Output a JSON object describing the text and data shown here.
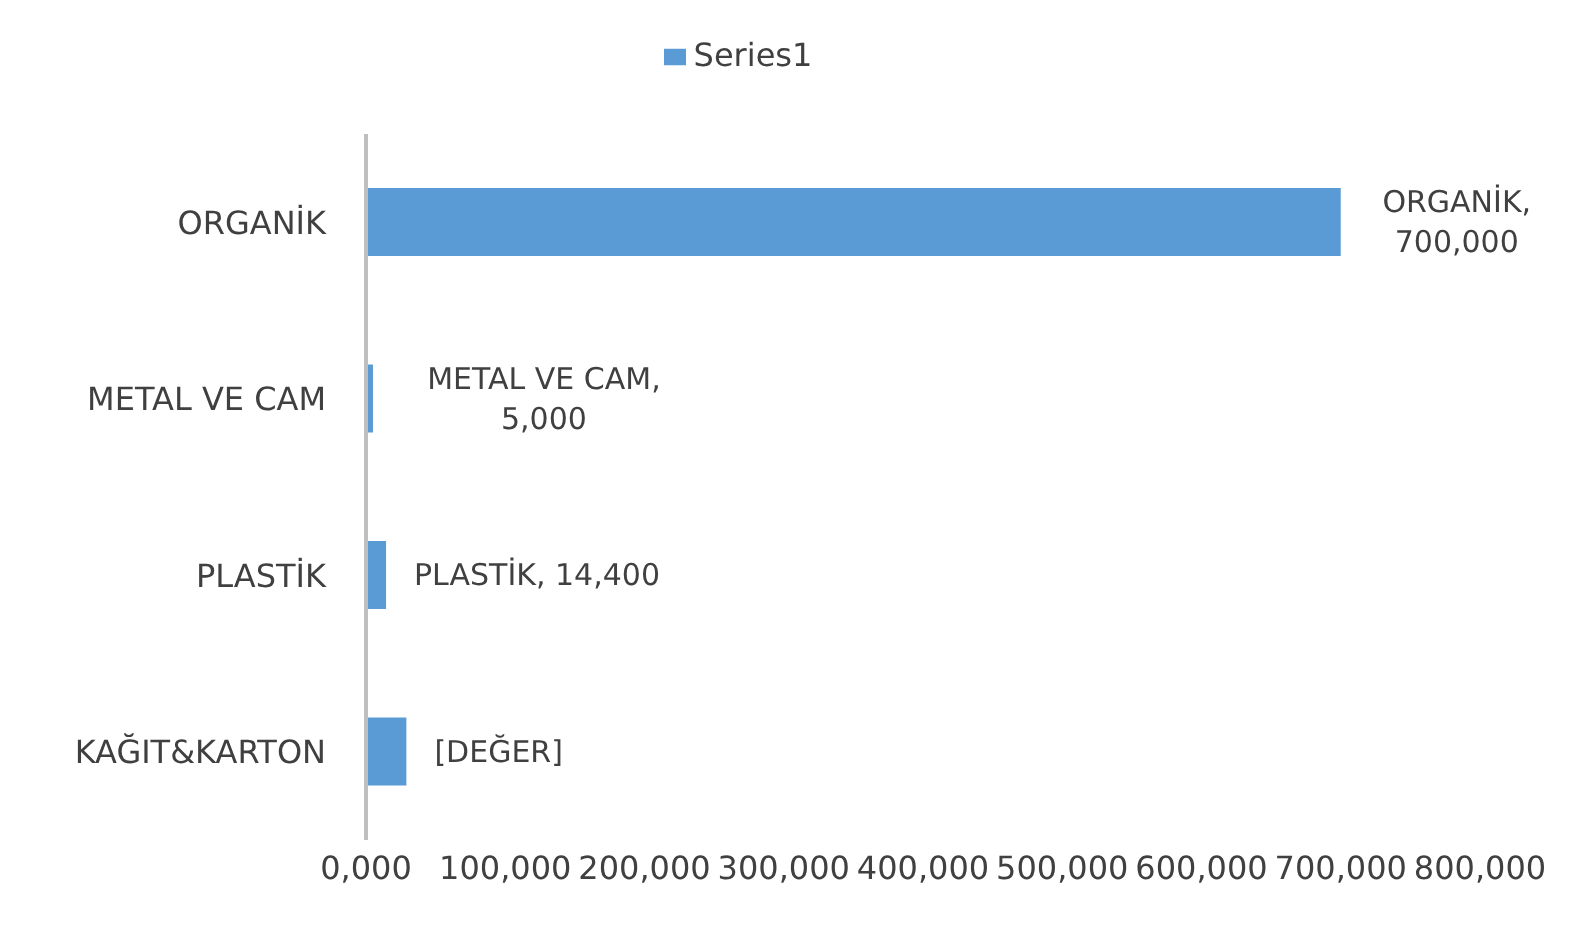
{
  "chart_data": {
    "type": "bar",
    "orientation": "horizontal",
    "categories": [
      "ORGANİK",
      "METAL VE CAM",
      "PLASTİK",
      "KAĞIT&KARTON"
    ],
    "series": [
      {
        "name": "Series1",
        "color": "#5b9bd5",
        "values": [
          700000,
          5000,
          14400,
          29000
        ],
        "value_labels": [
          "ORGANİK, 700,000",
          "METAL VE CAM, 5,000",
          "PLASTİK, 14,400",
          "[DEĞER]"
        ]
      }
    ],
    "xlim": [
      0,
      800000
    ],
    "xticks": [
      {
        "value": 0,
        "label": "0,000"
      },
      {
        "value": 100000,
        "label": "100,000"
      },
      {
        "value": 200000,
        "label": "200,000"
      },
      {
        "value": 300000,
        "label": "300,000"
      },
      {
        "value": 400000,
        "label": "400,000"
      },
      {
        "value": 500000,
        "label": "500,000"
      },
      {
        "value": 600000,
        "label": "600,000"
      },
      {
        "value": 700000,
        "label": "700,000"
      },
      {
        "value": 800000,
        "label": "800,000"
      }
    ],
    "grid": false,
    "legend": "top"
  }
}
